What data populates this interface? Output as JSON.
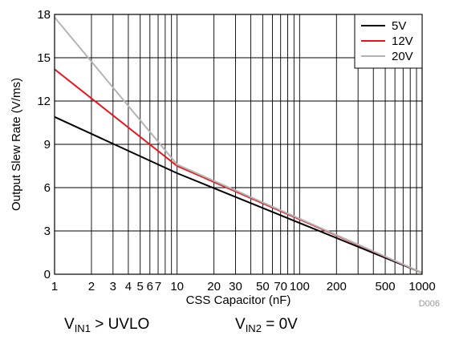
{
  "chart_data": {
    "type": "line",
    "xlabel": "CSS Capacitor (nF)",
    "ylabel": "Output Slew Rate (V/ms)",
    "xscale": "log",
    "xlim": [
      1,
      1000
    ],
    "ylim": [
      0,
      18
    ],
    "x_ticks": [
      {
        "value": 1,
        "label": "1"
      },
      {
        "value": 2,
        "label": "2"
      },
      {
        "value": 3,
        "label": "3"
      },
      {
        "value": 4,
        "label": "4"
      },
      {
        "value": 5,
        "label": "5"
      },
      {
        "value": 6,
        "label": "6"
      },
      {
        "value": 7,
        "label": "7"
      },
      {
        "value": 10,
        "label": "10"
      },
      {
        "value": 20,
        "label": "20"
      },
      {
        "value": 30,
        "label": "30"
      },
      {
        "value": 50,
        "label": "50"
      },
      {
        "value": 70,
        "label": "70"
      },
      {
        "value": 100,
        "label": "100"
      },
      {
        "value": 200,
        "label": "200"
      },
      {
        "value": 500,
        "label": "500"
      },
      {
        "value": 1000,
        "label": "1000"
      }
    ],
    "y_ticks": [
      0,
      3,
      6,
      9,
      12,
      15,
      18
    ],
    "grid": true,
    "legend": "top-right",
    "series": [
      {
        "name": "5V",
        "color": "#000000",
        "x": [
          1,
          10,
          1000
        ],
        "y": [
          10.9,
          7.0,
          0.1
        ]
      },
      {
        "name": "12V",
        "color": "#e8141c",
        "x": [
          1,
          10,
          1000
        ],
        "y": [
          14.2,
          7.5,
          0.1
        ]
      },
      {
        "name": "20V",
        "color": "#b4b4b4",
        "x": [
          1,
          10,
          1000
        ],
        "y": [
          17.8,
          7.6,
          0.1
        ]
      }
    ],
    "figure_id": "D006"
  },
  "notes": {
    "vin1": {
      "main": "V",
      "sub": "IN1",
      "rest": " > UVLO"
    },
    "vin2": {
      "main": "V",
      "sub": "IN2",
      "rest": " = 0V"
    }
  }
}
